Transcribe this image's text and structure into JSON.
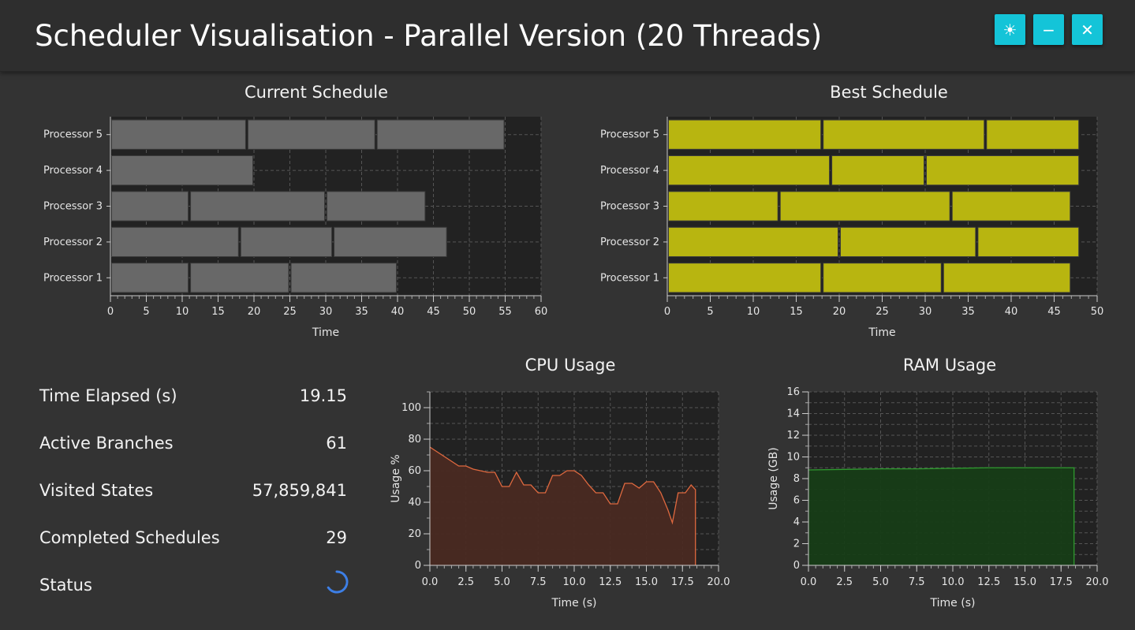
{
  "header": {
    "title": "Scheduler Visualisation - Parallel Version (20 Threads)",
    "buttons": [
      {
        "icon": "sun-icon",
        "glyph": "☀"
      },
      {
        "icon": "minimize-icon",
        "glyph": "−"
      },
      {
        "icon": "close-icon",
        "glyph": "✕"
      }
    ],
    "accent_color": "#14c4d8"
  },
  "current_schedule": {
    "title": "Current Schedule",
    "xlabel": "Time",
    "bar_color": "#686868",
    "chart_data": {
      "type": "gantt",
      "xlim": [
        0,
        60
      ],
      "x_ticks": [
        0,
        5,
        10,
        15,
        20,
        25,
        30,
        35,
        40,
        45,
        50,
        55,
        60
      ],
      "processors": [
        {
          "name": "Processor 5",
          "tasks": [
            [
              0,
              19
            ],
            [
              19,
              37
            ],
            [
              37,
              55
            ]
          ]
        },
        {
          "name": "Processor 4",
          "tasks": [
            [
              0,
              20
            ]
          ]
        },
        {
          "name": "Processor 3",
          "tasks": [
            [
              0,
              11
            ],
            [
              11,
              30
            ],
            [
              30,
              44
            ]
          ]
        },
        {
          "name": "Processor 2",
          "tasks": [
            [
              0,
              18
            ],
            [
              18,
              31
            ],
            [
              31,
              47
            ]
          ]
        },
        {
          "name": "Processor 1",
          "tasks": [
            [
              0,
              11
            ],
            [
              11,
              25
            ],
            [
              25,
              40
            ]
          ]
        }
      ]
    }
  },
  "best_schedule": {
    "title": "Best Schedule",
    "xlabel": "Time",
    "bar_color": "#b8b510",
    "chart_data": {
      "type": "gantt",
      "xlim": [
        0,
        50
      ],
      "x_ticks": [
        0,
        5,
        10,
        15,
        20,
        25,
        30,
        35,
        40,
        45,
        50
      ],
      "processors": [
        {
          "name": "Processor 5",
          "tasks": [
            [
              0,
              18
            ],
            [
              18,
              37
            ],
            [
              37,
              48
            ]
          ]
        },
        {
          "name": "Processor 4",
          "tasks": [
            [
              0,
              19
            ],
            [
              19,
              30
            ],
            [
              30,
              48
            ]
          ]
        },
        {
          "name": "Processor 3",
          "tasks": [
            [
              0,
              13
            ],
            [
              13,
              33
            ],
            [
              33,
              47
            ]
          ]
        },
        {
          "name": "Processor 2",
          "tasks": [
            [
              0,
              20
            ],
            [
              20,
              36
            ],
            [
              36,
              48
            ]
          ]
        },
        {
          "name": "Processor 1",
          "tasks": [
            [
              0,
              18
            ],
            [
              18,
              32
            ],
            [
              32,
              47
            ]
          ]
        }
      ]
    }
  },
  "stats": [
    {
      "label": "Time Elapsed (s)",
      "value": "19.15"
    },
    {
      "label": "Active Branches",
      "value": "61"
    },
    {
      "label": "Visited States",
      "value": "57,859,841"
    },
    {
      "label": "Completed Schedules",
      "value": "29"
    },
    {
      "label": "Status",
      "value": ""
    }
  ],
  "status_indicator": "loading-spinner-icon",
  "cpu_usage": {
    "title": "CPU Usage",
    "xlabel": "Time (s)",
    "ylabel": "Usage %",
    "line_color": "#e0693f",
    "fill_color": "#4a2a22",
    "chart_data": {
      "type": "area",
      "xlim": [
        0,
        20
      ],
      "ylim": [
        0,
        110
      ],
      "x_ticks": [
        "0.0",
        "2.5",
        "5.0",
        "7.5",
        "10.0",
        "12.5",
        "15.0",
        "17.5",
        "20.0"
      ],
      "y_ticks": [
        0,
        20,
        40,
        60,
        80,
        100
      ],
      "x": [
        0,
        0.5,
        1.0,
        1.5,
        2.0,
        2.5,
        3.0,
        3.5,
        4.0,
        4.5,
        5.0,
        5.5,
        6.0,
        6.5,
        7.0,
        7.5,
        8.0,
        8.5,
        9.0,
        9.5,
        10.0,
        10.5,
        11.0,
        11.5,
        12.0,
        12.5,
        13.0,
        13.5,
        14.0,
        14.5,
        15.0,
        15.5,
        16.0,
        16.5,
        16.8,
        17.2,
        17.7,
        18.1,
        18.4
      ],
      "y": [
        75,
        72,
        69,
        66,
        63,
        63,
        61,
        60,
        59,
        59,
        50,
        50,
        59,
        51,
        51,
        46,
        46,
        57,
        57,
        60,
        60,
        57,
        51,
        46,
        46,
        39,
        39,
        52,
        52,
        49,
        53,
        53,
        46,
        35,
        27,
        46,
        46,
        51,
        48
      ]
    }
  },
  "ram_usage": {
    "title": "RAM Usage",
    "xlabel": "Time (s)",
    "ylabel": "Usage (GB)",
    "line_color": "#2f9a2f",
    "fill_color": "#173d17",
    "chart_data": {
      "type": "area",
      "xlim": [
        0,
        20
      ],
      "ylim": [
        0,
        16
      ],
      "x_ticks": [
        "0.0",
        "2.5",
        "5.0",
        "7.5",
        "10.0",
        "12.5",
        "15.0",
        "17.5",
        "20.0"
      ],
      "y_ticks": [
        0,
        2,
        4,
        6,
        8,
        10,
        12,
        14,
        16
      ],
      "x": [
        0,
        2.5,
        5.0,
        7.5,
        10.0,
        12.5,
        15.0,
        17.5,
        18.4
      ],
      "y": [
        8.8,
        8.85,
        8.9,
        8.9,
        8.95,
        9.0,
        9.0,
        9.0,
        9.0
      ]
    }
  }
}
